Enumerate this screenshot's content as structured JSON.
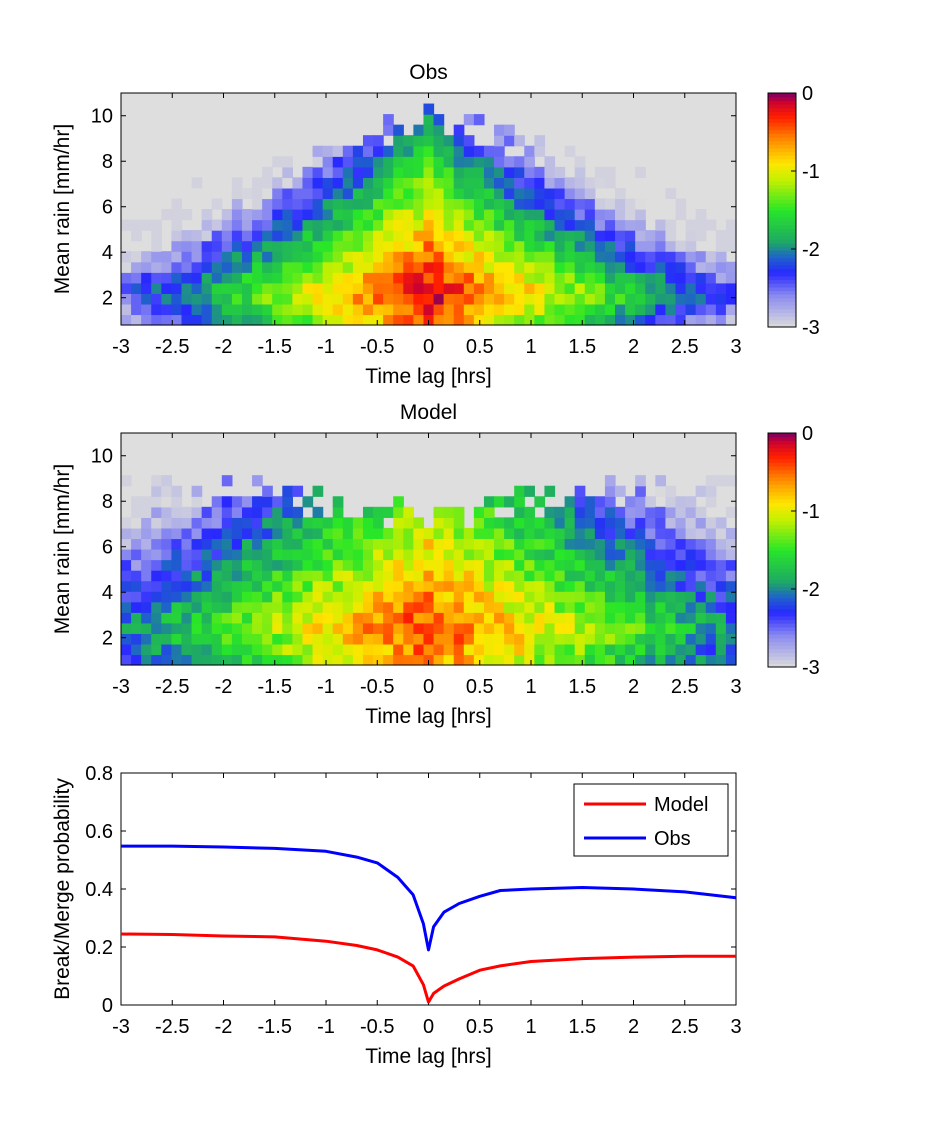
{
  "chart_data": [
    {
      "type": "heatmap",
      "title": "Obs",
      "xlabel": "Time lag [hrs]",
      "ylabel": "Mean rain [mm/hr]",
      "xlim": [
        -3,
        3
      ],
      "ylim": [
        0.8,
        11
      ],
      "xticks": [
        "-3",
        "-2.5",
        "-2",
        "-1.5",
        "-1",
        "-0.5",
        "0",
        "0.5",
        "1",
        "1.5",
        "2",
        "2.5",
        "3"
      ],
      "yticks": [
        "2",
        "4",
        "6",
        "8",
        "10"
      ],
      "color_scale": "log10 frequency",
      "colorbar_range": [
        -3,
        0
      ],
      "colorbar_ticks": [
        "0",
        "-1",
        "-2",
        "-3"
      ],
      "background_color": "#dedede",
      "colormap": [
        {
          "v": -3.0,
          "color": "#dcdcdc"
        },
        {
          "v": -2.6,
          "color": "#8c8cf0"
        },
        {
          "v": -2.3,
          "color": "#2828ff"
        },
        {
          "v": -2.1,
          "color": "#1e64c8"
        },
        {
          "v": -1.9,
          "color": "#1eaa64"
        },
        {
          "v": -1.5,
          "color": "#28e628"
        },
        {
          "v": -1.1,
          "color": "#c8f000"
        },
        {
          "v": -0.9,
          "color": "#ffe600"
        },
        {
          "v": -0.6,
          "color": "#ff8c00"
        },
        {
          "v": -0.3,
          "color": "#ff1e00"
        },
        {
          "v": -0.1,
          "color": "#c80032"
        },
        {
          "v": 0.0,
          "color": "#780064"
        }
      ],
      "profile": {
        "peak_y": 2.2,
        "peak_t": 0.0,
        "peak_value": -0.12,
        "decay_t": 0.75,
        "decay_y": 0.24,
        "ridge_slope": 0.28,
        "max_rain_center": 10.0,
        "max_rain_edge": 5.5,
        "noise": 0.22
      }
    },
    {
      "type": "heatmap",
      "title": "Model",
      "xlabel": "Time lag [hrs]",
      "ylabel": "Mean rain [mm/hr]",
      "xlim": [
        -3,
        3
      ],
      "ylim": [
        0.8,
        11
      ],
      "xticks": [
        "-3",
        "-2.5",
        "-2",
        "-1.5",
        "-1",
        "-0.5",
        "0",
        "0.5",
        "1",
        "1.5",
        "2",
        "2.5",
        "3"
      ],
      "yticks": [
        "2",
        "4",
        "6",
        "8",
        "10"
      ],
      "color_scale": "log10 frequency",
      "colorbar_range": [
        -3,
        0
      ],
      "colorbar_ticks": [
        "0",
        "-1",
        "-2",
        "-3"
      ],
      "background_color": "#dedede",
      "profile": {
        "peak_y": 2.4,
        "peak_t": 0.0,
        "peak_value": -0.35,
        "decay_t": 0.55,
        "decay_y": 0.16,
        "ridge_slope": 0.12,
        "max_rain_center": 7.5,
        "max_rain_edge": 9.0,
        "noise": 0.25
      }
    },
    {
      "type": "line",
      "xlabel": "Time lag [hrs]",
      "ylabel": "Break/Merge probability",
      "xlim": [
        -3,
        3
      ],
      "ylim": [
        0,
        0.8
      ],
      "xticks": [
        "-3",
        "-2.5",
        "-2",
        "-1.5",
        "-1",
        "-0.5",
        "0",
        "0.5",
        "1",
        "1.5",
        "2",
        "2.5",
        "3"
      ],
      "yticks": [
        "0",
        "0.2",
        "0.4",
        "0.6",
        "0.8"
      ],
      "legend_position": "top-right",
      "series": [
        {
          "name": "Model",
          "color": "#ff0000",
          "x": [
            -3,
            -2.5,
            -2,
            -1.5,
            -1,
            -0.7,
            -0.5,
            -0.3,
            -0.15,
            -0.05,
            0,
            0.05,
            0.15,
            0.3,
            0.5,
            0.7,
            1,
            1.5,
            2,
            2.5,
            3
          ],
          "y": [
            0.245,
            0.243,
            0.238,
            0.235,
            0.22,
            0.205,
            0.19,
            0.165,
            0.135,
            0.07,
            0.01,
            0.04,
            0.065,
            0.09,
            0.12,
            0.135,
            0.15,
            0.16,
            0.165,
            0.168,
            0.168
          ]
        },
        {
          "name": "Obs",
          "color": "#0000ff",
          "x": [
            -3,
            -2.5,
            -2,
            -1.5,
            -1,
            -0.7,
            -0.5,
            -0.3,
            -0.15,
            -0.05,
            0,
            0.05,
            0.15,
            0.3,
            0.5,
            0.7,
            1,
            1.5,
            2,
            2.5,
            3
          ],
          "y": [
            0.548,
            0.548,
            0.545,
            0.54,
            0.53,
            0.51,
            0.49,
            0.44,
            0.38,
            0.28,
            0.19,
            0.27,
            0.32,
            0.35,
            0.375,
            0.395,
            0.4,
            0.405,
            0.4,
            0.39,
            0.37
          ]
        }
      ]
    }
  ]
}
